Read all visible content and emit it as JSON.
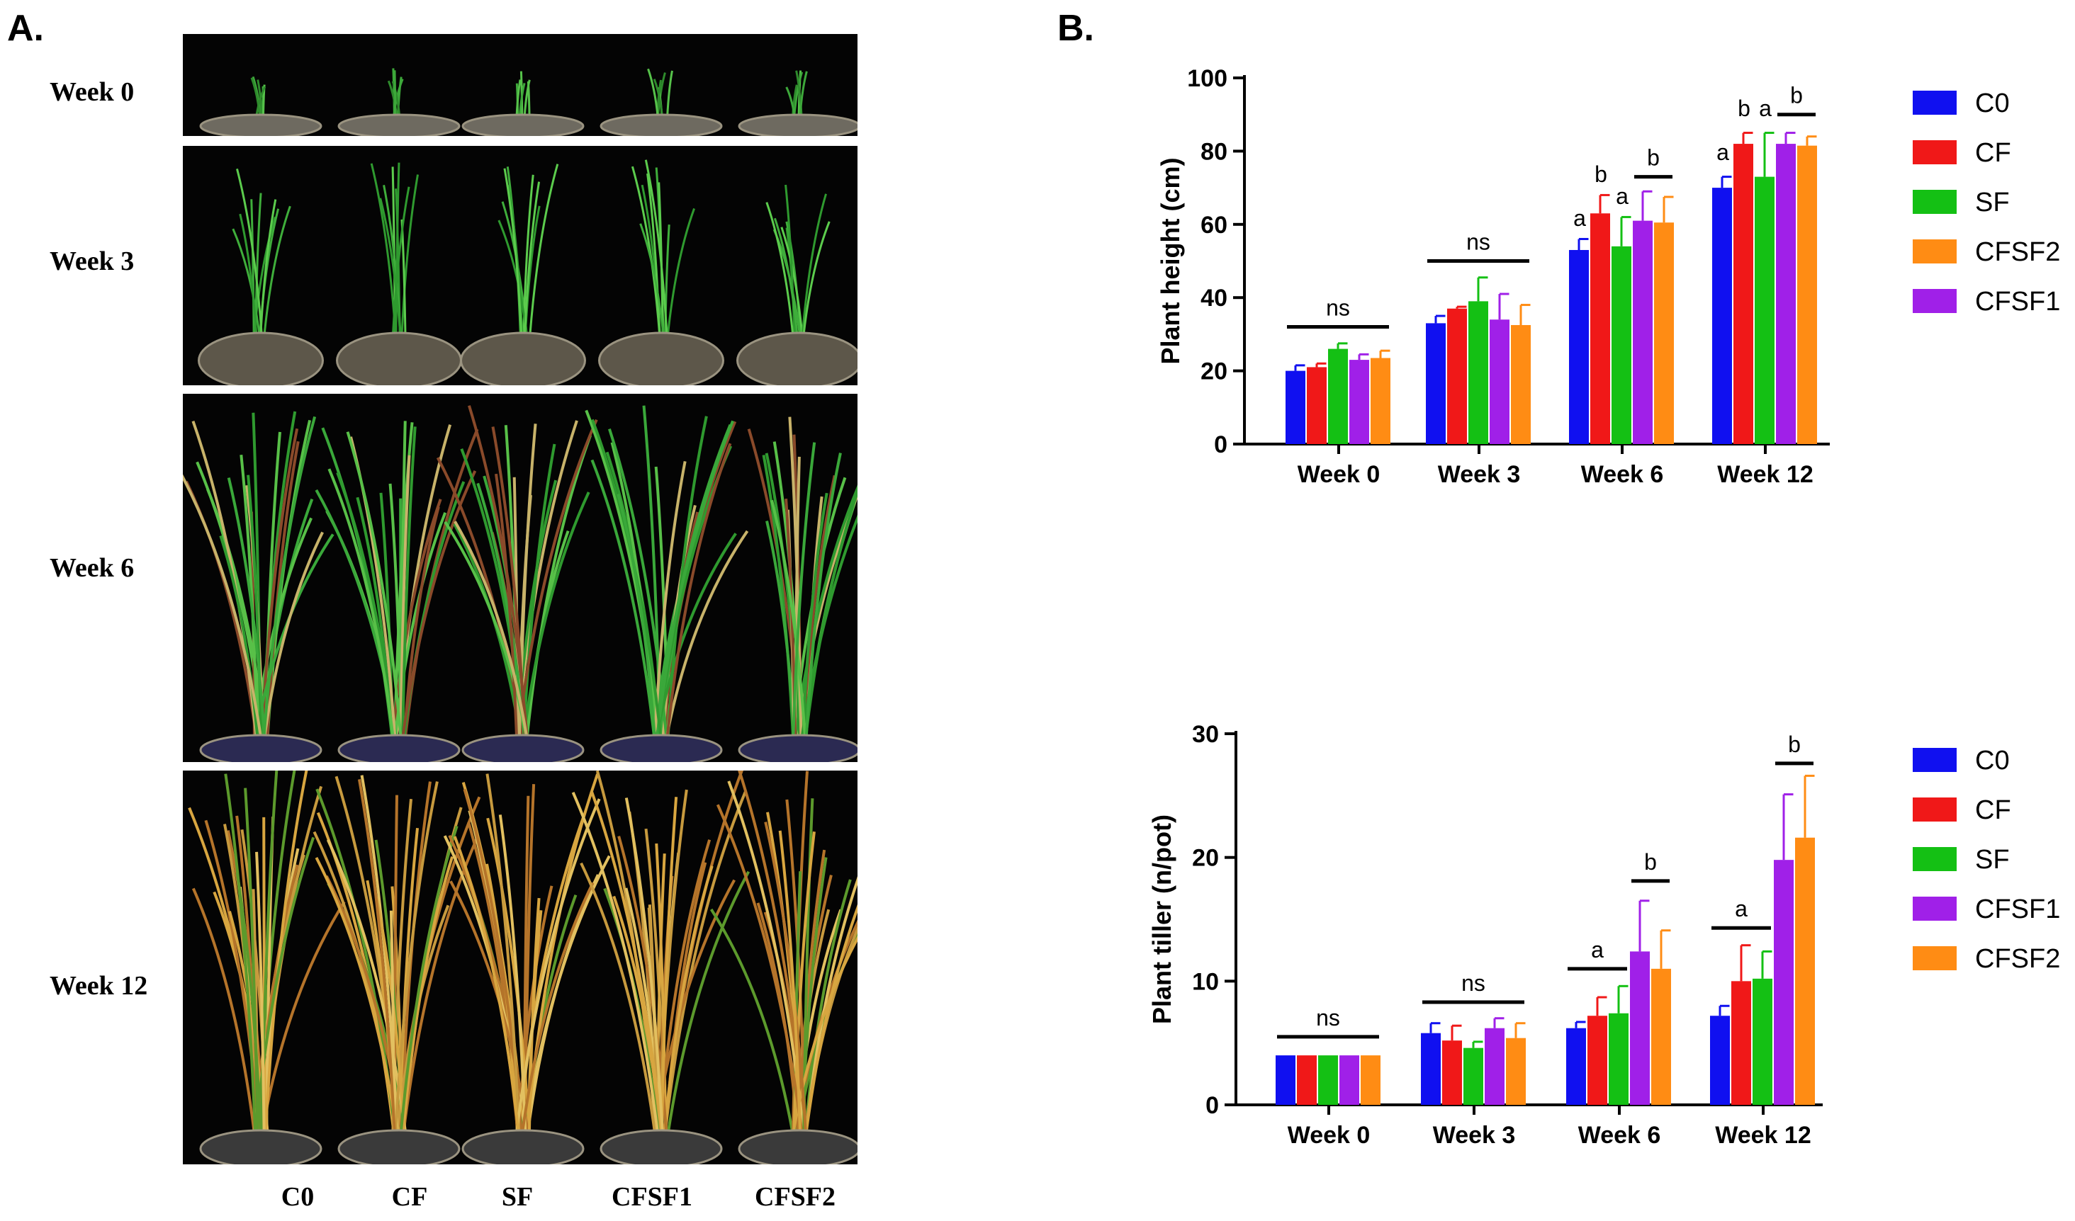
{
  "figure": {
    "panel_a_label": "A.",
    "panel_b_label": "B.",
    "photo_rows": [
      {
        "week": "Week 0",
        "stage": 0
      },
      {
        "week": "Week 3",
        "stage": 1
      },
      {
        "week": "Week 6",
        "stage": 2
      },
      {
        "week": "Week 12",
        "stage": 3
      }
    ],
    "treatment_labels": [
      "C0",
      "CF",
      "SF",
      "CFSF1",
      "CFSF2"
    ]
  },
  "colors": {
    "C0": "#1010f0",
    "CF": "#f01818",
    "SF": "#14c014",
    "CFSF1": "#a020e8",
    "CFSF2": "#ff8c14"
  },
  "chart_data": [
    {
      "type": "bar",
      "id": "height",
      "ylabel": "Plant height (cm)",
      "xlabel": "",
      "ylim": [
        0,
        100
      ],
      "yticks": [
        0,
        20,
        40,
        60,
        80,
        100
      ],
      "categories": [
        "Week 0",
        "Week 3",
        "Week 6",
        "Week 12"
      ],
      "legend": [
        "C0",
        "CF",
        "SF",
        "CFSF2",
        "CFSF1"
      ],
      "legend_colors": [
        "C0",
        "CF",
        "SF",
        "CFSF2",
        "CFSF1"
      ],
      "series": [
        {
          "name": "C0",
          "color": "C0",
          "values": [
            20,
            33,
            53,
            70
          ],
          "errors": [
            1.5,
            2,
            3,
            3
          ]
        },
        {
          "name": "CF",
          "color": "CF",
          "values": [
            21,
            37,
            63,
            82
          ],
          "errors": [
            1,
            0.5,
            5,
            3
          ]
        },
        {
          "name": "SF",
          "color": "SF",
          "values": [
            26,
            39,
            54,
            73
          ],
          "errors": [
            1.5,
            6.5,
            8,
            12
          ]
        },
        {
          "name": "CFSF1",
          "color": "CFSF1",
          "values": [
            23,
            34,
            61,
            82
          ],
          "errors": [
            1.5,
            7,
            8,
            3
          ]
        },
        {
          "name": "CFSF2",
          "color": "CFSF2",
          "values": [
            23.5,
            32.5,
            60.5,
            81.5
          ],
          "errors": [
            2,
            5.5,
            7,
            2.5
          ]
        }
      ],
      "annotations": [
        {
          "text": "ns",
          "group": 0,
          "span": [
            0,
            4
          ],
          "value": 32
        },
        {
          "text": "ns",
          "group": 1,
          "span": [
            0,
            4
          ],
          "value": 50
        },
        {
          "text": "a",
          "group": 2,
          "bar": 0,
          "value": 58
        },
        {
          "text": "b",
          "group": 2,
          "bar": 1,
          "value": 70
        },
        {
          "text": "a",
          "group": 2,
          "bar": 2,
          "value": 64
        },
        {
          "text": "b",
          "group": 2,
          "span": [
            3,
            4
          ],
          "value": 73
        },
        {
          "text": "a",
          "group": 3,
          "bar": 0,
          "value": 76
        },
        {
          "text": "b",
          "group": 3,
          "bar": 1,
          "value": 88
        },
        {
          "text": "a",
          "group": 3,
          "bar": 2,
          "value": 88
        },
        {
          "text": "b",
          "group": 3,
          "span": [
            3,
            4
          ],
          "value": 90
        }
      ]
    },
    {
      "type": "bar",
      "id": "tiller",
      "ylabel": "Plant tiller (n/pot)",
      "xlabel": "",
      "ylim": [
        0,
        30
      ],
      "yticks": [
        0,
        10,
        20,
        30
      ],
      "categories": [
        "Week 0",
        "Week 3",
        "Week 6",
        "Week 12"
      ],
      "legend": [
        "C0",
        "CF",
        "SF",
        "CFSF1",
        "CFSF2"
      ],
      "legend_colors": [
        "C0",
        "CF",
        "SF",
        "CFSF1",
        "CFSF2"
      ],
      "series": [
        {
          "name": "C0",
          "color": "C0",
          "values": [
            4,
            5.8,
            6.2,
            7.2
          ],
          "errors": [
            0,
            0.8,
            0.5,
            0.8
          ]
        },
        {
          "name": "CF",
          "color": "CF",
          "values": [
            4,
            5.2,
            7.2,
            10
          ],
          "errors": [
            0,
            1.2,
            1.5,
            2.9
          ]
        },
        {
          "name": "SF",
          "color": "SF",
          "values": [
            4,
            4.6,
            7.4,
            10.2
          ],
          "errors": [
            0,
            0.5,
            2.2,
            2.2
          ]
        },
        {
          "name": "CFSF1",
          "color": "CFSF1",
          "values": [
            4,
            6.2,
            12.4,
            19.8
          ],
          "errors": [
            0,
            0.8,
            4.1,
            5.3
          ]
        },
        {
          "name": "CFSF2",
          "color": "CFSF2",
          "values": [
            4,
            5.4,
            11,
            21.6
          ],
          "errors": [
            0,
            1.2,
            3.1,
            5
          ]
        }
      ],
      "annotations": [
        {
          "text": "ns",
          "group": 0,
          "span": [
            0,
            4
          ],
          "value": 5.5
        },
        {
          "text": "ns",
          "group": 1,
          "span": [
            0,
            4
          ],
          "value": 8.3
        },
        {
          "text": "a",
          "group": 2,
          "span": [
            0,
            2
          ],
          "value": 11
        },
        {
          "text": "b",
          "group": 2,
          "span": [
            3,
            4
          ],
          "value": 18.1
        },
        {
          "text": "a",
          "group": 3,
          "span": [
            0,
            2
          ],
          "value": 14.3
        },
        {
          "text": "b",
          "group": 3,
          "span": [
            3,
            4
          ],
          "value": 27.6
        }
      ]
    }
  ]
}
